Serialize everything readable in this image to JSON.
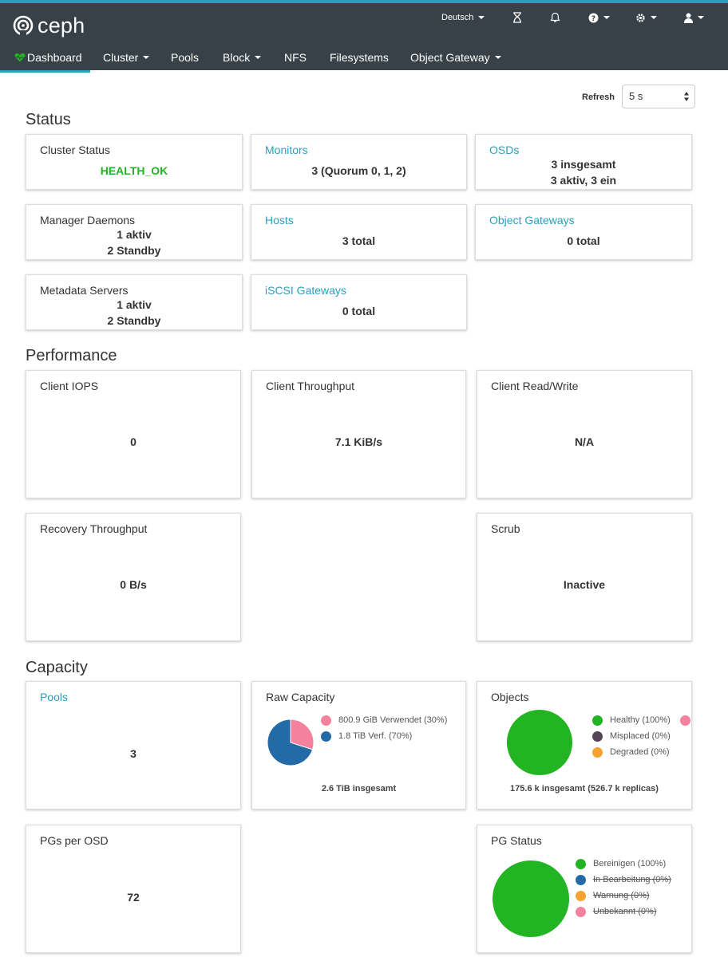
{
  "header": {
    "brand": "ceph",
    "language": "Deutsch",
    "icons": [
      "hourglass-icon",
      "bell-icon",
      "help-icon",
      "gear-icon",
      "user-icon"
    ]
  },
  "nav": [
    {
      "label": "Dashboard",
      "active": true,
      "dropdown": false
    },
    {
      "label": "Cluster",
      "dropdown": true
    },
    {
      "label": "Pools",
      "dropdown": false
    },
    {
      "label": "Block",
      "dropdown": true
    },
    {
      "label": "NFS",
      "dropdown": false
    },
    {
      "label": "Filesystems",
      "dropdown": false
    },
    {
      "label": "Object Gateway",
      "dropdown": true
    }
  ],
  "refresh": {
    "label": "Refresh",
    "value": "5 s"
  },
  "sections": {
    "status": "Status",
    "performance": "Performance",
    "capacity": "Capacity"
  },
  "status": {
    "cluster_status": {
      "title": "Cluster Status",
      "value": "HEALTH_OK"
    },
    "monitors": {
      "title": "Monitors",
      "value": "3 (Quorum 0, 1, 2)"
    },
    "osds": {
      "title": "OSDs",
      "line1": "3 insgesamt",
      "line2": "3 aktiv, 3 ein"
    },
    "manager_daemons": {
      "title": "Manager Daemons",
      "line1": "1 aktiv",
      "line2": "2 Standby"
    },
    "hosts": {
      "title": "Hosts",
      "value": "3 total"
    },
    "object_gateways": {
      "title": "Object Gateways",
      "value": "0 total"
    },
    "metadata_servers": {
      "title": "Metadata Servers",
      "line1": "1 aktiv",
      "line2": "2 Standby"
    },
    "iscsi_gateways": {
      "title": "iSCSI Gateways",
      "value": "0 total"
    }
  },
  "performance": {
    "client_iops": {
      "title": "Client IOPS",
      "value": "0"
    },
    "client_throughput": {
      "title": "Client Throughput",
      "value": "7.1 KiB/s"
    },
    "client_read_write": {
      "title": "Client Read/Write",
      "value": "N/A"
    },
    "recovery_throughput": {
      "title": "Recovery Throughput",
      "value": "0 B/s"
    },
    "scrub": {
      "title": "Scrub",
      "value": "Inactive"
    }
  },
  "capacity": {
    "pools": {
      "title": "Pools",
      "value": "3"
    },
    "raw_capacity": {
      "title": "Raw Capacity",
      "legend": [
        {
          "label": "800.9 GiB Verwendet (30%)",
          "color": "#f4829f"
        },
        {
          "label": "1.8 TiB Verf. (70%)",
          "color": "#246aa6"
        }
      ],
      "total": "2.6 TiB insgesamt"
    },
    "objects": {
      "title": "Objects",
      "legend": [
        {
          "label": "Healthy (100%)",
          "color": "#22b422"
        },
        {
          "label": "Misplaced (0%)",
          "color": "#554455"
        },
        {
          "label": "Degraded (0%)",
          "color": "#f7a130"
        }
      ],
      "total": "175.6 k insgesamt (526.7 k replicas)"
    },
    "pgs_per_osd": {
      "title": "PGs per OSD",
      "value": "72"
    },
    "pg_status": {
      "title": "PG Status",
      "legend": [
        {
          "label": "Bereinigen (100%)",
          "color": "#22b422",
          "struck": false
        },
        {
          "label": "In Bearbeitung (0%)",
          "color": "#246aa6",
          "struck": true
        },
        {
          "label": "Warnung (0%)",
          "color": "#f7a130",
          "struck": true
        },
        {
          "label": "Unbekannt (0%)",
          "color": "#f4829f",
          "struck": true
        }
      ]
    }
  },
  "chart_data": [
    {
      "type": "pie",
      "title": "Raw Capacity",
      "categories": [
        "Verwendet",
        "Verf."
      ],
      "values": [
        30,
        70
      ],
      "colors": [
        "#f4829f",
        "#246aa6"
      ]
    },
    {
      "type": "pie",
      "title": "Objects",
      "categories": [
        "Healthy",
        "Misplaced",
        "Degraded"
      ],
      "values": [
        100,
        0,
        0
      ],
      "colors": [
        "#22b422",
        "#554455",
        "#f7a130"
      ]
    },
    {
      "type": "pie",
      "title": "PG Status",
      "categories": [
        "Bereinigen",
        "In Bearbeitung",
        "Warnung",
        "Unbekannt"
      ],
      "values": [
        100,
        0,
        0,
        0
      ],
      "colors": [
        "#22b422",
        "#246aa6",
        "#f7a130",
        "#f4829f"
      ]
    }
  ]
}
